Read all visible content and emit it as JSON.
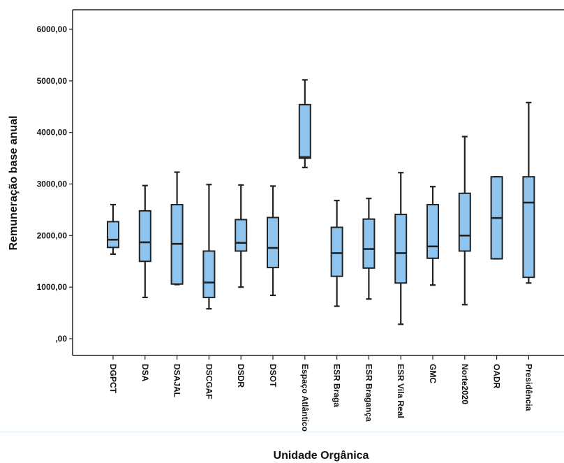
{
  "chart_data": {
    "type": "boxplot",
    "title": "",
    "xlabel": "Unidade Orgânica",
    "ylabel": "Remuneração base anual",
    "ylim": [
      0,
      6500
    ],
    "yticks": [
      0,
      1000,
      2000,
      3000,
      4000,
      5000,
      6000
    ],
    "ytick_labels": [
      ",00",
      "1000,00",
      "2000,00",
      "3000,00",
      "4000,00",
      "5000,00",
      "6000,00"
    ],
    "box_color": "#8ec4ee",
    "line_color": "#222222",
    "categories": [
      "DGPCT",
      "DSA",
      "DSAJAL",
      "DSCGAF",
      "DSDR",
      "DSOT",
      "Espaço Atlântico",
      "ESR Braga",
      "ESR Bragança",
      "ESR Vila Real",
      "GMC",
      "Norte2020",
      "OADR",
      "Presidência"
    ],
    "boxes": [
      {
        "min": 1640,
        "q1": 1770,
        "median": 1920,
        "q3": 2270,
        "max": 2600
      },
      {
        "min": 800,
        "q1": 1500,
        "median": 1870,
        "q3": 2480,
        "max": 2970
      },
      {
        "min": 1050,
        "q1": 1060,
        "median": 1840,
        "q3": 2600,
        "max": 3230
      },
      {
        "min": 580,
        "q1": 800,
        "median": 1090,
        "q3": 1700,
        "max": 2990
      },
      {
        "min": 1000,
        "q1": 1700,
        "median": 1860,
        "q3": 2310,
        "max": 2980
      },
      {
        "min": 840,
        "q1": 1380,
        "median": 1760,
        "q3": 2350,
        "max": 2960
      },
      {
        "min": 3320,
        "q1": 3500,
        "median": 3520,
        "q3": 4540,
        "max": 5020
      },
      {
        "min": 630,
        "q1": 1210,
        "median": 1660,
        "q3": 2160,
        "max": 2680
      },
      {
        "min": 770,
        "q1": 1370,
        "median": 1740,
        "q3": 2320,
        "max": 2720
      },
      {
        "min": 280,
        "q1": 1080,
        "median": 1660,
        "q3": 2410,
        "max": 3220
      },
      {
        "min": 1040,
        "q1": 1560,
        "median": 1790,
        "q3": 2600,
        "max": 2950
      },
      {
        "min": 660,
        "q1": 1700,
        "median": 2000,
        "q3": 2820,
        "max": 3920
      },
      {
        "min": 1550,
        "q1": 1550,
        "median": 2340,
        "q3": 3140,
        "max": 3140
      },
      {
        "min": 1080,
        "q1": 1190,
        "median": 2640,
        "q3": 3140,
        "max": 4580
      }
    ]
  }
}
